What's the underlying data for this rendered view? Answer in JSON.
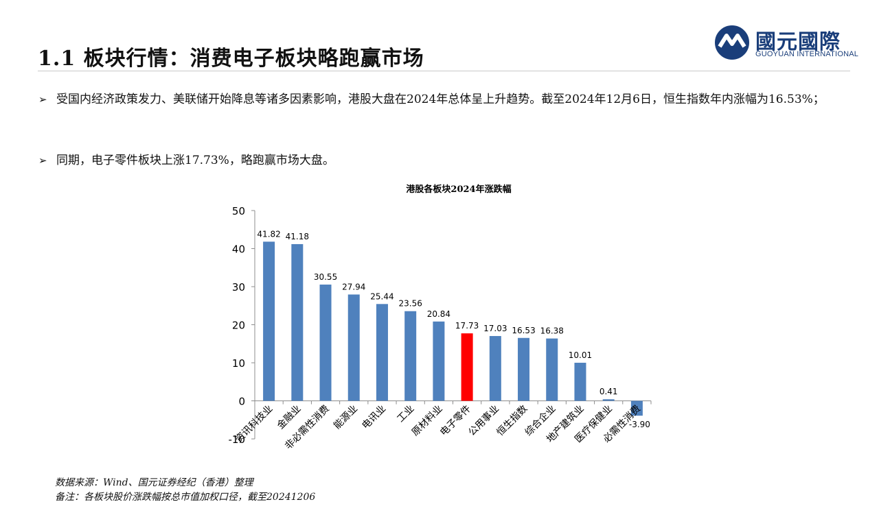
{
  "slide": {
    "title": "1.1 板块行情：消费电子板块略跑赢市场",
    "logo": {
      "cn": "國元國際",
      "en": "GUOYUAN INTERNATIONAL"
    },
    "bullets": [
      "受国内经济政策发力、美联储开始降息等诸多因素影响，港股大盘在2024年总体呈上升趋势。截至2024年12月6日，恒生指数年内涨幅为16.53%；",
      "同期，电子零件板块上涨17.73%，略跑赢市场大盘。"
    ],
    "bullet_icon": "arrow-bullet-icon",
    "footnotes": [
      "数据来源：Wind、国元证券经纪（香港）整理",
      "备注：各板块股价涨跌幅按总市值加权口径，截至20241206"
    ]
  },
  "chart_data": {
    "type": "bar",
    "title": "港股各板块2024年涨跌幅",
    "xlabel": "",
    "ylabel": "",
    "ylim": [
      -10,
      50
    ],
    "yticks": [
      -10,
      0,
      10,
      20,
      30,
      40,
      50
    ],
    "grid": false,
    "legend": "none",
    "categories": [
      "资讯科技业",
      "金融业",
      "非必需性消费",
      "能源业",
      "电讯业",
      "工业",
      "原材料业",
      "电子零件",
      "公用事业",
      "恒生指数",
      "综合企业",
      "地产建筑业",
      "医疗保健业",
      "必需性消费"
    ],
    "values": [
      41.82,
      41.18,
      30.55,
      27.94,
      25.44,
      23.56,
      20.84,
      17.73,
      17.03,
      16.53,
      16.38,
      10.01,
      0.41,
      -3.9
    ],
    "value_labels": [
      "41.82",
      "41.18",
      "30.55",
      "27.94",
      "25.44",
      "23.56",
      "20.84",
      "17.73",
      "17.03",
      "16.53",
      "16.38",
      "10.01",
      "0.41",
      "-3.90"
    ],
    "highlight_index": 7,
    "colors": {
      "bar": "#4f81bd",
      "highlight": "#ff0000",
      "axis": "#8c8c8c"
    }
  }
}
